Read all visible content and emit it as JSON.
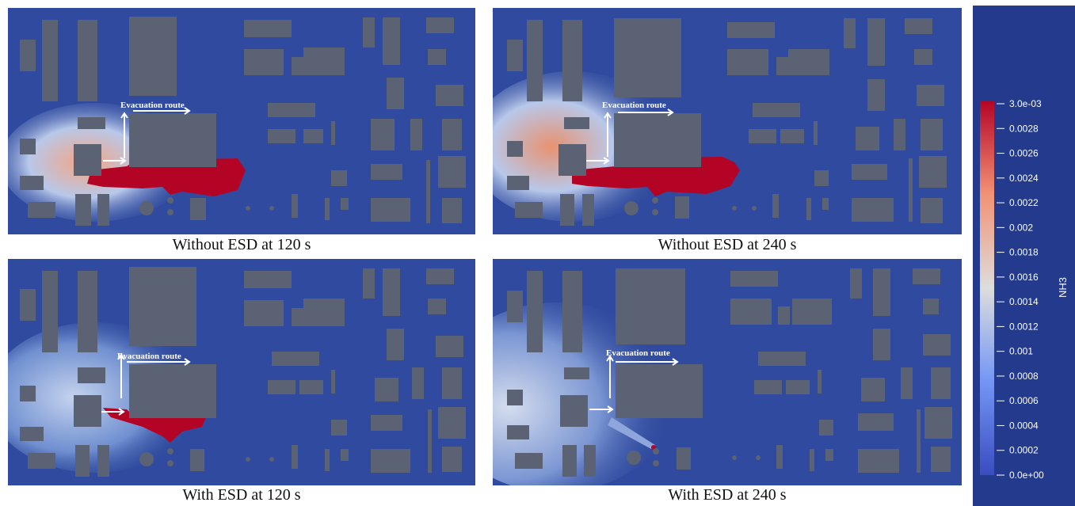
{
  "panels": [
    {
      "caption": "Without ESD at 120 s",
      "route_label": "Evacuation route"
    },
    {
      "caption": "Without ESD at 240 s",
      "route_label": "Evacuation route"
    },
    {
      "caption": "With ESD at 120 s",
      "route_label": "Evacuation route"
    },
    {
      "caption": "With ESD at 240 s",
      "route_label": "Evacuation route"
    }
  ],
  "colorbar": {
    "title": "NH3",
    "ticks": [
      "3.0e-03",
      "0.0028",
      "0.0026",
      "0.0024",
      "0.0022",
      "0.002",
      "0.0018",
      "0.0016",
      "0.0014",
      "0.0012",
      "0.001",
      "0.0008",
      "0.0006",
      "0.0004",
      "0.0002",
      "0.0e+00"
    ],
    "colors": {
      "background": "#243a8c",
      "low": "#3b4cc0",
      "mid": "#dddddd",
      "high": "#b40426"
    }
  },
  "colors": {
    "domain": "#2f4a9e",
    "building": "#5a6273",
    "arrow": "#ffffff"
  }
}
